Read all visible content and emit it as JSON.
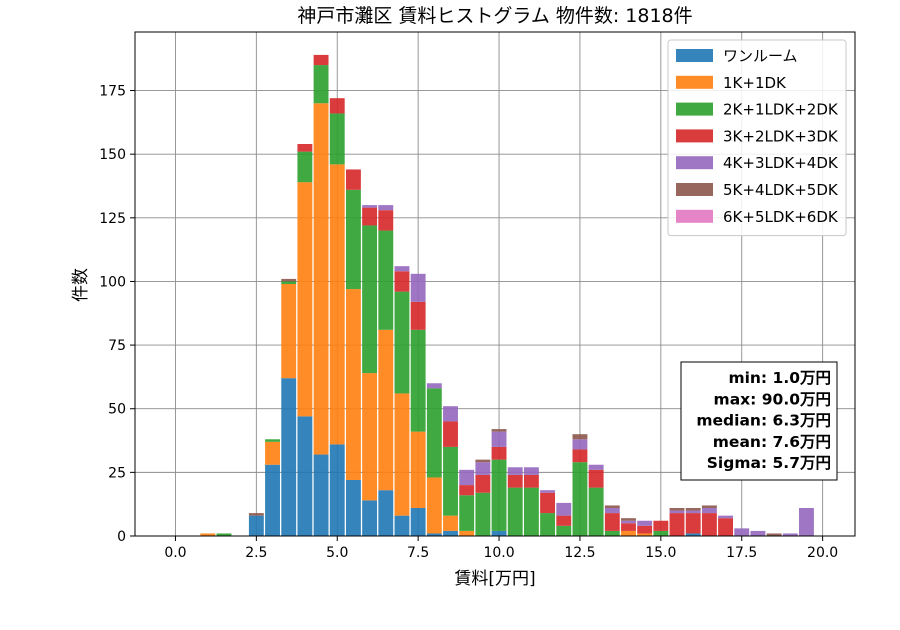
{
  "chart_data": {
    "type": "bar",
    "stacked": true,
    "title": "神戸市灘区 賃料ヒストグラム 物件数: 1818件",
    "xlabel": "賃料[万円]",
    "ylabel": "件数",
    "xlim": [
      -1.25,
      21.0
    ],
    "ylim": [
      0,
      198
    ],
    "xticks": [
      0.0,
      2.5,
      5.0,
      7.5,
      10.0,
      12.5,
      15.0,
      17.5,
      20.0
    ],
    "xtick_labels": [
      "0.0",
      "2.5",
      "5.0",
      "7.5",
      "10.0",
      "12.5",
      "15.0",
      "17.5",
      "20.0"
    ],
    "yticks": [
      0,
      25,
      50,
      75,
      100,
      125,
      150,
      175
    ],
    "ytick_labels": [
      "0",
      "25",
      "50",
      "75",
      "100",
      "125",
      "150",
      "175"
    ],
    "grid": true,
    "legend_position": "top-right",
    "bin_width": 0.5,
    "bin_centers": [
      1.0,
      1.5,
      2.5,
      3.0,
      3.5,
      4.0,
      4.5,
      5.0,
      5.5,
      6.0,
      6.5,
      7.0,
      7.5,
      8.0,
      8.5,
      9.0,
      9.5,
      10.0,
      10.5,
      11.0,
      11.5,
      12.0,
      12.5,
      13.0,
      13.5,
      14.0,
      14.5,
      15.0,
      15.5,
      16.0,
      16.5,
      17.0,
      17.5,
      18.0,
      18.5,
      19.0,
      19.5
    ],
    "series": [
      {
        "name": "ワンルーム",
        "color": "#1f77b4",
        "values": [
          0,
          0,
          8,
          28,
          62,
          47,
          32,
          36,
          22,
          14,
          18,
          8,
          11,
          1,
          2,
          0,
          0,
          2,
          0,
          0,
          0,
          0,
          0,
          0,
          0,
          0,
          0,
          0,
          0,
          1,
          0,
          0,
          0,
          0,
          0,
          0,
          0
        ]
      },
      {
        "name": "1K+1DK",
        "color": "#ff7f0e",
        "values": [
          1,
          0,
          0,
          9,
          37,
          92,
          138,
          110,
          75,
          50,
          63,
          48,
          30,
          22,
          6,
          2,
          0,
          0,
          0,
          0,
          0,
          0,
          0,
          0,
          0,
          2,
          1,
          0,
          0,
          0,
          0,
          0,
          0,
          0,
          0,
          0,
          0
        ]
      },
      {
        "name": "2K+1LDK+2DK",
        "color": "#2ca02c",
        "values": [
          0,
          1,
          0,
          1,
          1,
          12,
          15,
          20,
          39,
          58,
          39,
          40,
          40,
          35,
          27,
          14,
          17,
          28,
          19,
          19,
          9,
          4,
          29,
          19,
          2,
          0,
          0,
          2,
          0,
          0,
          0,
          0,
          0,
          0,
          0,
          0,
          0
        ]
      },
      {
        "name": "3K+2LDK+3DK",
        "color": "#d62728",
        "values": [
          0,
          0,
          0,
          0,
          0,
          3,
          4,
          6,
          8,
          7,
          8,
          8,
          11,
          0,
          10,
          4,
          7,
          5,
          5,
          5,
          8,
          4,
          5,
          7,
          7,
          3,
          3,
          4,
          9,
          8,
          9,
          7,
          0,
          0,
          0,
          0,
          0
        ]
      },
      {
        "name": "4K+3LDK+4DK",
        "color": "#9467bd",
        "values": [
          0,
          0,
          0,
          0,
          0,
          0,
          0,
          0,
          0,
          1,
          2,
          2,
          11,
          2,
          6,
          6,
          5,
          6,
          3,
          3,
          1,
          5,
          4,
          2,
          2,
          1,
          2,
          0,
          1,
          1,
          2,
          1,
          3,
          2,
          0,
          1,
          11
        ]
      },
      {
        "name": "5K+4LDK+5DK",
        "color": "#8c564b",
        "values": [
          0,
          0,
          1,
          0,
          1,
          0,
          0,
          0,
          0,
          0,
          0,
          0,
          0,
          0,
          0,
          0,
          1,
          1,
          0,
          0,
          0,
          0,
          2,
          0,
          1,
          1,
          0,
          0,
          1,
          1,
          1,
          0,
          0,
          0,
          1,
          0,
          0
        ]
      },
      {
        "name": "6K+5LDK+6DK",
        "color": "#e377c2",
        "values": [
          0,
          0,
          0,
          0,
          0,
          0,
          0,
          0,
          0,
          0,
          0,
          0,
          0,
          0,
          0,
          0,
          0,
          0,
          0,
          0,
          0,
          0,
          0,
          0,
          0,
          0,
          0,
          0,
          0,
          0,
          0,
          0,
          0,
          0,
          0,
          0,
          0
        ]
      }
    ],
    "stats_box": {
      "position": "bottom-right",
      "lines": [
        "min: 1.0万円",
        "max: 90.0万円",
        "median: 6.3万円",
        "mean: 7.6万円",
        "Sigma: 5.7万円"
      ]
    }
  }
}
